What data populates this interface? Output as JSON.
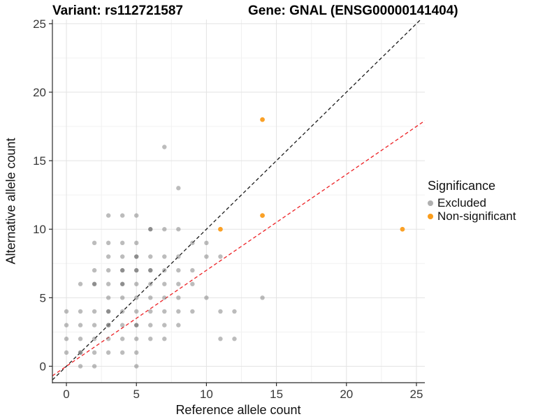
{
  "title": {
    "variant": "Variant: rs112721587",
    "gene": "Gene: GNAL (ENSG00000141404)"
  },
  "legend": {
    "title": "Significance",
    "items": [
      {
        "label": "Excluded",
        "color": "#b0b0b0"
      },
      {
        "label": "Non-significant",
        "color": "#FA9C1B"
      }
    ]
  },
  "chart_data": {
    "type": "scatter",
    "xlabel": "Reference allele count",
    "ylabel": "Alternative allele count",
    "x_domain": [
      -1.0,
      25.6
    ],
    "y_domain": [
      -1.2,
      25.3
    ],
    "x_ticks": [
      0,
      5,
      10,
      15,
      20,
      25
    ],
    "y_ticks": [
      0,
      5,
      10,
      15,
      20,
      25
    ],
    "x_minor_ticks": [
      2.5,
      7.5,
      12.5,
      17.5,
      22.5
    ],
    "y_minor_ticks": [
      2.5,
      7.5,
      12.5,
      17.5,
      22.5
    ],
    "grid": "on",
    "legend_position": "right",
    "series": [
      {
        "name": "Excluded",
        "color": "#7a7a7a",
        "alpha": 0.5,
        "alpha_dark": 0.85,
        "radius": 3.2,
        "points": [
          [
            1,
            0
          ],
          [
            2,
            0
          ],
          [
            5,
            0
          ],
          [
            0,
            1
          ],
          [
            1,
            1,
            1
          ],
          [
            2,
            1
          ],
          [
            3,
            1
          ],
          [
            4,
            1
          ],
          [
            5,
            1
          ],
          [
            0,
            2
          ],
          [
            1,
            2
          ],
          [
            2,
            2
          ],
          [
            3,
            2
          ],
          [
            4,
            2
          ],
          [
            5,
            2
          ],
          [
            6,
            2
          ],
          [
            7,
            2
          ],
          [
            11,
            2
          ],
          [
            12,
            2
          ],
          [
            0,
            3
          ],
          [
            1,
            3
          ],
          [
            2,
            3
          ],
          [
            3,
            3,
            1
          ],
          [
            4,
            3
          ],
          [
            5,
            3,
            1
          ],
          [
            6,
            3
          ],
          [
            7,
            3
          ],
          [
            8,
            3
          ],
          [
            0,
            4
          ],
          [
            1,
            4
          ],
          [
            2,
            4
          ],
          [
            3,
            4,
            1
          ],
          [
            4,
            4
          ],
          [
            5,
            4
          ],
          [
            6,
            4
          ],
          [
            7,
            4
          ],
          [
            8,
            4
          ],
          [
            9,
            4
          ],
          [
            11,
            4
          ],
          [
            12,
            4
          ],
          [
            3,
            5
          ],
          [
            4,
            5
          ],
          [
            5,
            5
          ],
          [
            6,
            5
          ],
          [
            7,
            5
          ],
          [
            8,
            5
          ],
          [
            10,
            5
          ],
          [
            14,
            5
          ],
          [
            1,
            6
          ],
          [
            2,
            6,
            1
          ],
          [
            3,
            6
          ],
          [
            4,
            6,
            1
          ],
          [
            5,
            6
          ],
          [
            6,
            6
          ],
          [
            7,
            6
          ],
          [
            8,
            6
          ],
          [
            9,
            6
          ],
          [
            2,
            7
          ],
          [
            3,
            7
          ],
          [
            4,
            7,
            1
          ],
          [
            5,
            7,
            1
          ],
          [
            6,
            7,
            1
          ],
          [
            7,
            7
          ],
          [
            8,
            7
          ],
          [
            9,
            7
          ],
          [
            3,
            8
          ],
          [
            4,
            8
          ],
          [
            5,
            8,
            1
          ],
          [
            6,
            8
          ],
          [
            7,
            8
          ],
          [
            8,
            8
          ],
          [
            10,
            8
          ],
          [
            11,
            8
          ],
          [
            2,
            9
          ],
          [
            3,
            9
          ],
          [
            4,
            9
          ],
          [
            5,
            9
          ],
          [
            9,
            9
          ],
          [
            10,
            9
          ],
          [
            6,
            10,
            1
          ],
          [
            7,
            10
          ],
          [
            8,
            10
          ],
          [
            3,
            11
          ],
          [
            4,
            11
          ],
          [
            5,
            11
          ],
          [
            8,
            13
          ],
          [
            7,
            16
          ]
        ]
      },
      {
        "name": "Non-significant",
        "color": "#FA9C1B",
        "alpha": 0.95,
        "alpha_dark": 1,
        "radius": 3.4,
        "points": [
          [
            11,
            10
          ],
          [
            14,
            11
          ],
          [
            14,
            18
          ],
          [
            24,
            10
          ]
        ]
      }
    ],
    "lines": [
      {
        "name": "identity-line",
        "slope": 1,
        "intercept": 0,
        "color": "#1a1a1a",
        "dash": "5 3.5",
        "width": 1.3
      },
      {
        "name": "threshold-line",
        "slope": 0.7,
        "intercept": 0,
        "color": "#ED2024",
        "dash": "5 3.5",
        "width": 1.3
      }
    ],
    "colors": {
      "background": "#ffffff",
      "grid_major": "#e3e3e3",
      "grid_minor": "#f1f1f1",
      "axis_line": "#2b2b2b",
      "tick_label": "#383838"
    }
  }
}
